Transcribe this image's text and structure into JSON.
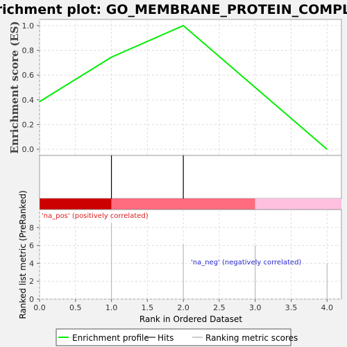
{
  "chart_data": {
    "type": "line",
    "title": "Enrichment plot: GO_MEMBRANE_PROTEIN_COMPLEX",
    "xlabel": "Rank in Ordered Dataset",
    "ylabel_top": "Enrichment score (ES)",
    "ylabel_bottom": "Ranked list metric (PreRanked)",
    "xlim": [
      0,
      4.2
    ],
    "ylim_top": [
      -0.05,
      1.05
    ],
    "ylim_bottom": [
      0,
      10
    ],
    "x_ticks": [
      "0.0",
      "0.5",
      "1.0",
      "1.5",
      "2.0",
      "2.5",
      "3.0",
      "3.5",
      "4.0"
    ],
    "y_ticks_top": [
      "0.0",
      "0.2",
      "0.4",
      "0.6",
      "0.8",
      "1.0"
    ],
    "y_ticks_bottom": [
      "0",
      "2",
      "4",
      "6",
      "8"
    ],
    "enrichment_profile": {
      "x": [
        0,
        1,
        2,
        3,
        4
      ],
      "y": [
        0.385,
        0.745,
        1.0,
        0.5,
        0.0
      ],
      "color": "#00ee00"
    },
    "hits": [
      1,
      2
    ],
    "ranking_metric": {
      "x": [
        1,
        2,
        3,
        4
      ],
      "values": [
        8.5,
        6.1,
        6.0,
        4.0
      ]
    },
    "heatmap_segments": [
      {
        "from": 0,
        "to": 1,
        "color": "#cc0000"
      },
      {
        "from": 1,
        "to": 3,
        "color": "#ff6b7f"
      },
      {
        "from": 3,
        "to": 4.2,
        "color": "#ffc0e0"
      }
    ],
    "annotations": {
      "pos": "'na_pos' (positively correlated)",
      "neg": "'na_neg' (negatively correlated)"
    },
    "legend": {
      "position": "bottom",
      "items": [
        {
          "label": "Enrichment profile",
          "color": "#00ee00"
        },
        {
          "label": "Hits",
          "color": "#777777"
        },
        {
          "label": "Ranking metric scores",
          "color": "#cccccc"
        }
      ]
    }
  }
}
